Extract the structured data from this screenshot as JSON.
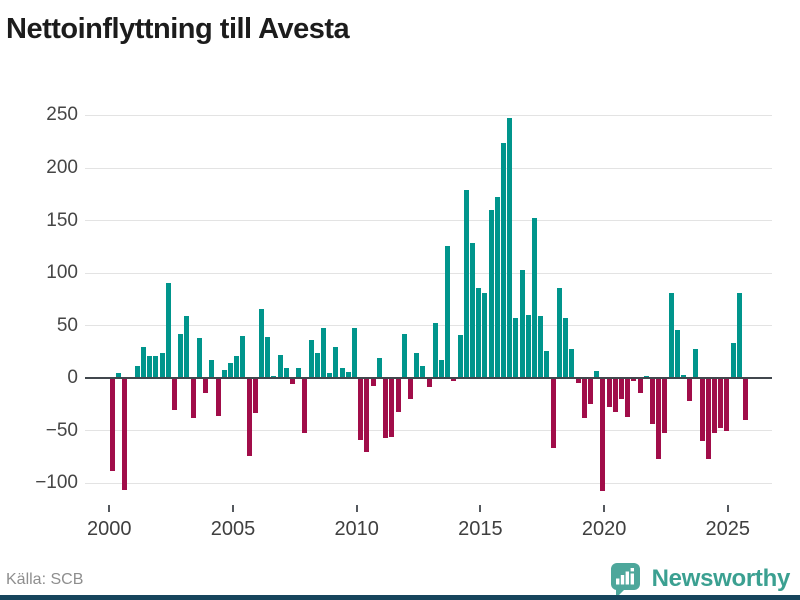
{
  "title": "Nettoinflyttning till Avesta",
  "source": "Källa: SCB",
  "brand": {
    "name": "Newsworthy",
    "text_color": "#3ba091",
    "icon_color": "#4da79b",
    "strip_color": "#16455c"
  },
  "chart_data": {
    "type": "bar",
    "title": "Nettoinflyttning till Avesta",
    "xlabel": "",
    "ylabel": "",
    "frequency": "quarterly",
    "x_start": "2000 Q1",
    "x_end": "2025 Q3",
    "values": [
      -88,
      5,
      -106,
      1,
      12,
      30,
      21,
      21,
      24,
      91,
      -30,
      42,
      59,
      -38,
      38,
      -14,
      17,
      -36,
      8,
      15,
      21,
      40,
      -74,
      -33,
      66,
      39,
      2,
      22,
      10,
      -5,
      10,
      -52,
      36,
      24,
      48,
      5,
      30,
      10,
      6,
      48,
      -59,
      -70,
      -7,
      19,
      -57,
      -56,
      -32,
      42,
      -20,
      24,
      12,
      -8,
      53,
      17,
      126,
      -3,
      41,
      179,
      129,
      86,
      81,
      160,
      172,
      224,
      248,
      57,
      103,
      60,
      152,
      59,
      26,
      -66,
      86,
      57,
      28,
      -4,
      -38,
      -24,
      7,
      -107,
      -27,
      -32,
      -20,
      -37,
      -3,
      -14,
      2,
      -43,
      -77,
      -52,
      81,
      46,
      3,
      -22,
      28,
      -60,
      -77,
      -52,
      -47,
      -50,
      34,
      81,
      -40
    ],
    "positive_color": "#00958c",
    "negative_color": "#a10d49",
    "grid_color": "#e3e3e3",
    "axis_line_color": "#41474d",
    "ylim": [
      -120,
      260
    ],
    "grid": "horizontal only",
    "legend": "none",
    "yticks": [
      {
        "value": 250,
        "label": "250"
      },
      {
        "value": 200,
        "label": "200"
      },
      {
        "value": 150,
        "label": "150"
      },
      {
        "value": 100,
        "label": "100"
      },
      {
        "value": 50,
        "label": "50"
      },
      {
        "value": 0,
        "label": "0"
      },
      {
        "value": -50,
        "label": "−50"
      },
      {
        "value": -100,
        "label": "−100"
      }
    ],
    "xticks": [
      {
        "year": 2000,
        "label": "2000"
      },
      {
        "year": 2005,
        "label": "2005"
      },
      {
        "year": 2010,
        "label": "2010"
      },
      {
        "year": 2015,
        "label": "2015"
      },
      {
        "year": 2020,
        "label": "2020"
      },
      {
        "year": 2025,
        "label": "2025"
      }
    ]
  }
}
